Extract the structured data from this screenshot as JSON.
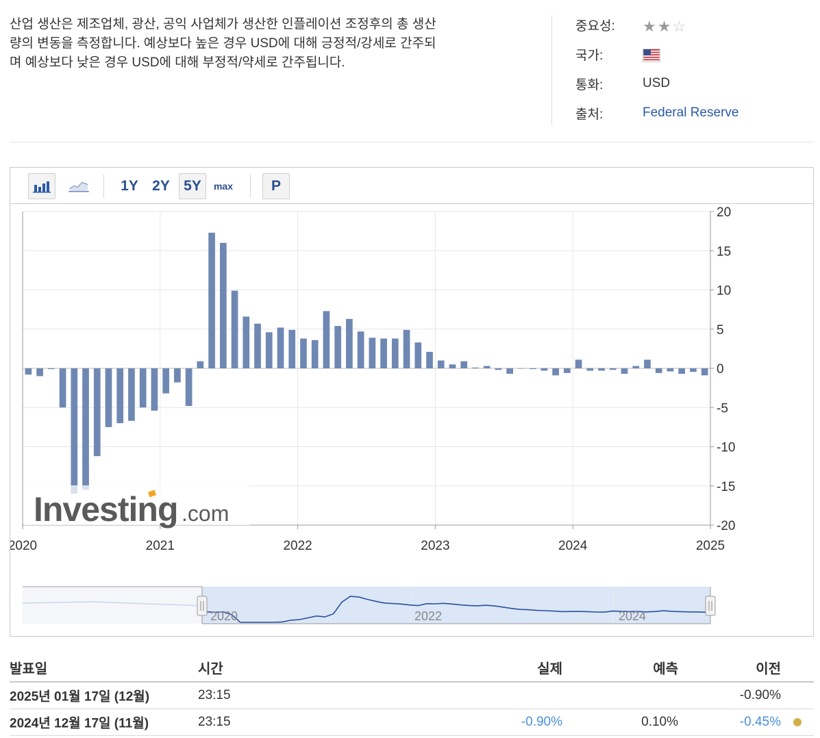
{
  "description": {
    "line1": "산업 생산은 제조업체, 광산, 공익 사업체가 생산한 인플레이션 조정후의 총 생산",
    "line2": "량의 변동을 측정합니다. 예상보다 높은 경우 USD에 대해 긍정적/강세로 간주되",
    "line3": "며 예상보다 낮은 경우 USD에 대해 부정적/약세로 간주됩니다."
  },
  "info": {
    "importance_label": "중요성:",
    "importance_stars": 2,
    "importance_max": 3,
    "country_label": "국가:",
    "country_flag": "us-flag-icon",
    "currency_label": "통화:",
    "currency_value": "USD",
    "source_label": "출처:",
    "source_value": "Federal Reserve"
  },
  "toolbar": {
    "bar_chart_icon": "bar-chart-icon",
    "line_chart_icon": "line-chart-icon",
    "ranges": [
      "1Y",
      "2Y",
      "5Y",
      "max"
    ],
    "selected_range": "5Y",
    "p_label": "P"
  },
  "colors": {
    "bar": "#6f88b3",
    "grid": "#e6e6e6",
    "navigator_line": "#2a4f9a",
    "navigator_fill": "#dbe6f7",
    "link": "#2a5aa8",
    "positive_value": "#4a90d9"
  },
  "watermark": "Investing.com",
  "chart_data": {
    "type": "bar",
    "ylim": [
      -20,
      20
    ],
    "y_ticks": [
      20,
      15,
      10,
      5,
      0,
      -5,
      -10,
      -15,
      -20
    ],
    "x_ticks": [
      "2020",
      "2021",
      "2022",
      "2023",
      "2024",
      "2025"
    ],
    "series": [
      {
        "values": [
          -0.8,
          -1.0,
          -0.1,
          -5.0,
          -16.0,
          -15.5,
          -11.2,
          -7.5,
          -7.0,
          -6.7,
          -5.0,
          -5.4,
          -3.2,
          -1.8,
          -4.8,
          0.9,
          17.3,
          16.0,
          9.9,
          6.6,
          5.7,
          4.6,
          5.2,
          4.9,
          3.8,
          3.6,
          7.3,
          5.4,
          6.3,
          4.7,
          3.9,
          3.8,
          3.8,
          4.9,
          3.3,
          2.1,
          1.0,
          0.5,
          0.9,
          0.1,
          0.3,
          -0.2,
          -0.7,
          0.0,
          -0.1,
          -0.3,
          -0.9,
          -0.6,
          1.1,
          -0.3,
          -0.3,
          -0.2,
          -0.7,
          0.3,
          1.1,
          -0.6,
          -0.4,
          -0.7,
          -0.45,
          -0.9
        ]
      }
    ]
  },
  "navigator": {
    "labels": [
      "2020",
      "2022",
      "2024"
    ]
  },
  "table": {
    "headers": {
      "date": "발표일",
      "time": "시간",
      "actual": "실제",
      "forecast": "예측",
      "previous": "이전"
    },
    "rows": [
      {
        "date": "2025년 01월 17일 (12월)",
        "time": "23:15",
        "actual": "",
        "forecast": "",
        "previous": "-0.90%"
      },
      {
        "date": "2024년 12월 17일 (11월)",
        "time": "23:15",
        "actual": "-0.90%",
        "forecast": "0.10%",
        "previous": "-0.45%"
      }
    ]
  }
}
